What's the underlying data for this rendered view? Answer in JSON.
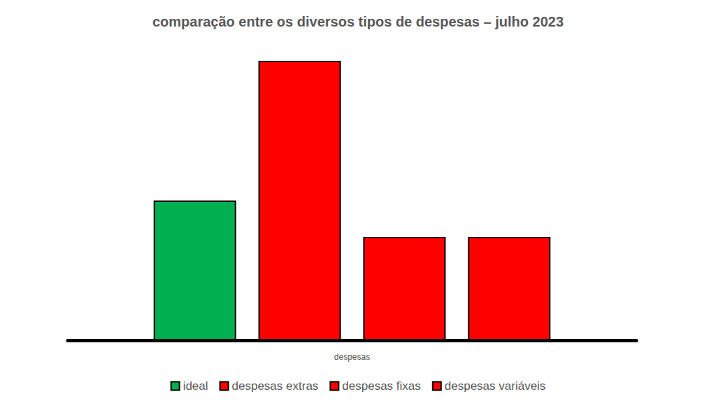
{
  "chart_data": {
    "type": "bar",
    "title": "comparação entre os diversos tipos de despesas – julho 2023",
    "categories": [
      "despesas"
    ],
    "series": [
      {
        "name": "ideal",
        "color": "#00b050",
        "values": [
          50
        ]
      },
      {
        "name": "despesas extras",
        "color": "#ff0000",
        "values": [
          100
        ]
      },
      {
        "name": "despesas fixas",
        "color": "#ff0000",
        "values": [
          37
        ]
      },
      {
        "name": "despesas variáveis",
        "color": "#ff0000",
        "values": [
          37
        ]
      }
    ],
    "ylim": [
      0,
      100
    ],
    "tick_labels": "x",
    "grid": false,
    "legend": "bottom"
  }
}
